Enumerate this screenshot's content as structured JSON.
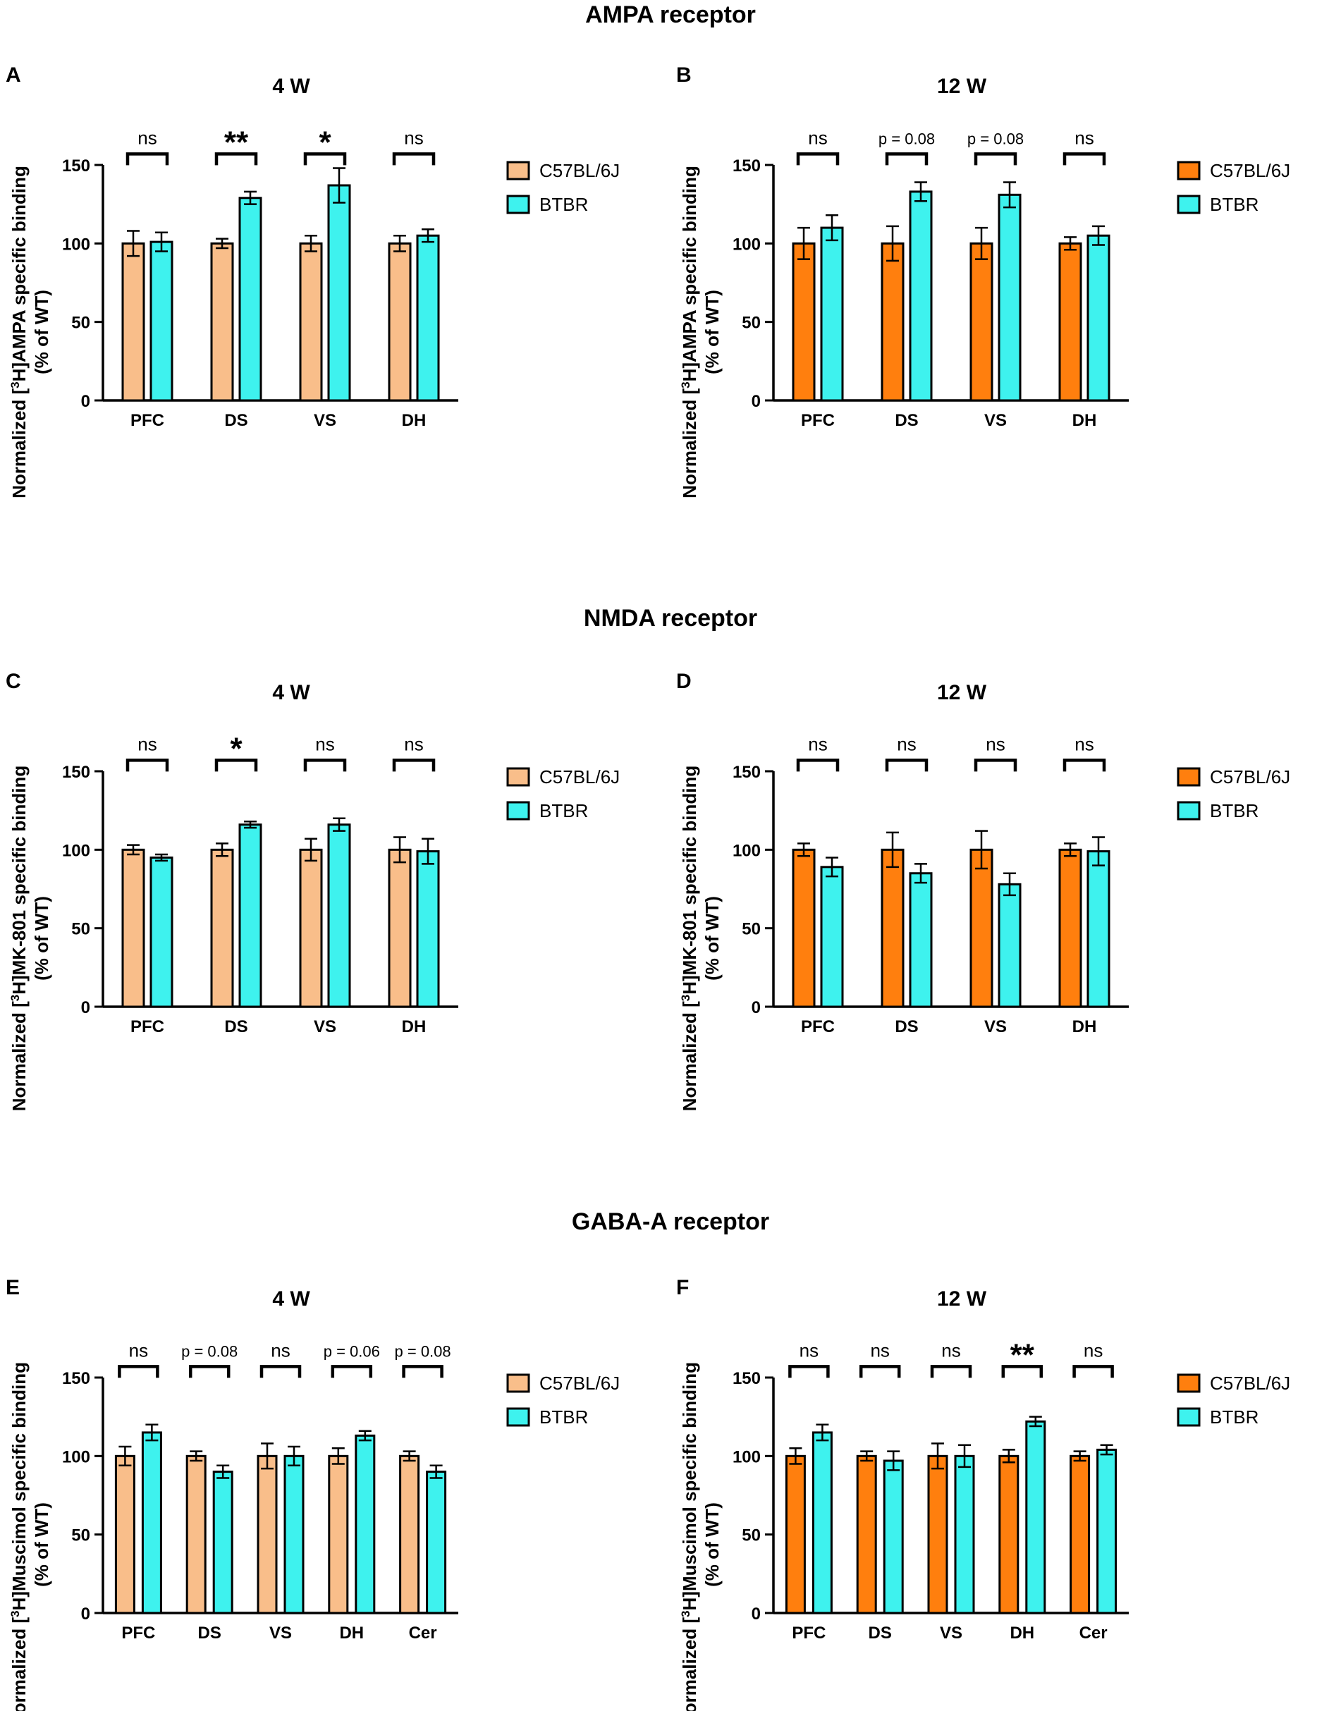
{
  "sections": [
    {
      "title": "AMPA receptor"
    },
    {
      "title": "NMDA receptor"
    },
    {
      "title": "GABA-A receptor"
    }
  ],
  "colors": {
    "light_orange": "#F9BE8A",
    "orange": "#FF7F0E",
    "cyan": "#3EF2EE",
    "stroke": "#000000"
  },
  "chart_data": [
    {
      "panel": "A",
      "type": "bar",
      "title": "4 W",
      "ylabel_pre": "Normalized [",
      "ylabel_sup": "3",
      "ylabel_post": "H]AMPA specific binding",
      "ylabel_line2": "(% of WT)",
      "ylim": [
        0,
        150
      ],
      "yticks": [
        0,
        50,
        100,
        150
      ],
      "categories": [
        "PFC",
        "DS",
        "VS",
        "DH"
      ],
      "series": [
        {
          "name": "C57BL/6J",
          "color": "#F9BE8A",
          "values": [
            100,
            100,
            100,
            100
          ],
          "errors": [
            8,
            3,
            5,
            5
          ]
        },
        {
          "name": "BTBR",
          "color": "#3EF2EE",
          "values": [
            101,
            129,
            137,
            105
          ],
          "errors": [
            6,
            4,
            11,
            4
          ]
        }
      ],
      "annotations": [
        "ns",
        "**",
        "*",
        "ns"
      ]
    },
    {
      "panel": "B",
      "type": "bar",
      "title": "12 W",
      "ylabel_pre": "Normalized [",
      "ylabel_sup": "3",
      "ylabel_post": "H]AMPA specific binding",
      "ylabel_line2": "(% of WT)",
      "ylim": [
        0,
        150
      ],
      "yticks": [
        0,
        50,
        100,
        150
      ],
      "categories": [
        "PFC",
        "DS",
        "VS",
        "DH"
      ],
      "series": [
        {
          "name": "C57BL/6J",
          "color": "#FF7F0E",
          "values": [
            100,
            100,
            100,
            100
          ],
          "errors": [
            10,
            11,
            10,
            4
          ]
        },
        {
          "name": "BTBR",
          "color": "#3EF2EE",
          "values": [
            110,
            133,
            131,
            105
          ],
          "errors": [
            8,
            6,
            8,
            6
          ]
        }
      ],
      "annotations": [
        "ns",
        "p = 0.08",
        "p = 0.08",
        "ns"
      ]
    },
    {
      "panel": "C",
      "type": "bar",
      "title": "4 W",
      "ylabel_pre": "Normalized [",
      "ylabel_sup": "3",
      "ylabel_post": "H]MK-801 specific binding",
      "ylabel_line2": "(% of WT)",
      "ylim": [
        0,
        150
      ],
      "yticks": [
        0,
        50,
        100,
        150
      ],
      "categories": [
        "PFC",
        "DS",
        "VS",
        "DH"
      ],
      "series": [
        {
          "name": "C57BL/6J",
          "color": "#F9BE8A",
          "values": [
            100,
            100,
            100,
            100
          ],
          "errors": [
            3,
            4,
            7,
            8
          ]
        },
        {
          "name": "BTBR",
          "color": "#3EF2EE",
          "values": [
            95,
            116,
            116,
            99
          ],
          "errors": [
            2,
            2,
            4,
            8
          ]
        }
      ],
      "annotations": [
        "ns",
        "*",
        "ns",
        "ns"
      ]
    },
    {
      "panel": "D",
      "type": "bar",
      "title": "12 W",
      "ylabel_pre": "Normalized [",
      "ylabel_sup": "3",
      "ylabel_post": "H]MK-801 specific binding",
      "ylabel_line2": "(% of WT)",
      "ylim": [
        0,
        150
      ],
      "yticks": [
        0,
        50,
        100,
        150
      ],
      "categories": [
        "PFC",
        "DS",
        "VS",
        "DH"
      ],
      "series": [
        {
          "name": "C57BL/6J",
          "color": "#FF7F0E",
          "values": [
            100,
            100,
            100,
            100
          ],
          "errors": [
            4,
            11,
            12,
            4
          ]
        },
        {
          "name": "BTBR",
          "color": "#3EF2EE",
          "values": [
            89,
            85,
            78,
            99
          ],
          "errors": [
            6,
            6,
            7,
            9
          ]
        }
      ],
      "annotations": [
        "ns",
        "ns",
        "ns",
        "ns"
      ]
    },
    {
      "panel": "E",
      "type": "bar",
      "title": "4 W",
      "ylabel_pre": "Normalized [",
      "ylabel_sup": "3",
      "ylabel_post": "H]Muscimol specific binding",
      "ylabel_line2": "(% of WT)",
      "ylim": [
        0,
        150
      ],
      "yticks": [
        0,
        50,
        100,
        150
      ],
      "categories": [
        "PFC",
        "DS",
        "VS",
        "DH",
        "Cer"
      ],
      "series": [
        {
          "name": "C57BL/6J",
          "color": "#F9BE8A",
          "values": [
            100,
            100,
            100,
            100,
            100
          ],
          "errors": [
            6,
            3,
            8,
            5,
            3
          ]
        },
        {
          "name": "BTBR",
          "color": "#3EF2EE",
          "values": [
            115,
            90,
            100,
            113,
            90
          ],
          "errors": [
            5,
            4,
            6,
            3,
            4
          ]
        }
      ],
      "annotations": [
        "ns",
        "p = 0.08",
        "ns",
        "p = 0.06",
        "p = 0.08"
      ]
    },
    {
      "panel": "F",
      "type": "bar",
      "title": "12 W",
      "ylabel_pre": "Normalized [",
      "ylabel_sup": "3",
      "ylabel_post": "H]Muscimol specific binding",
      "ylabel_line2": "(% of WT)",
      "ylim": [
        0,
        150
      ],
      "yticks": [
        0,
        50,
        100,
        150
      ],
      "categories": [
        "PFC",
        "DS",
        "VS",
        "DH",
        "Cer"
      ],
      "series": [
        {
          "name": "C57BL/6J",
          "color": "#FF7F0E",
          "values": [
            100,
            100,
            100,
            100,
            100
          ],
          "errors": [
            5,
            3,
            8,
            4,
            3
          ]
        },
        {
          "name": "BTBR",
          "color": "#3EF2EE",
          "values": [
            115,
            97,
            100,
            122,
            104
          ],
          "errors": [
            5,
            6,
            7,
            3,
            3
          ]
        }
      ],
      "annotations": [
        "ns",
        "ns",
        "ns",
        "**",
        "ns"
      ]
    }
  ]
}
